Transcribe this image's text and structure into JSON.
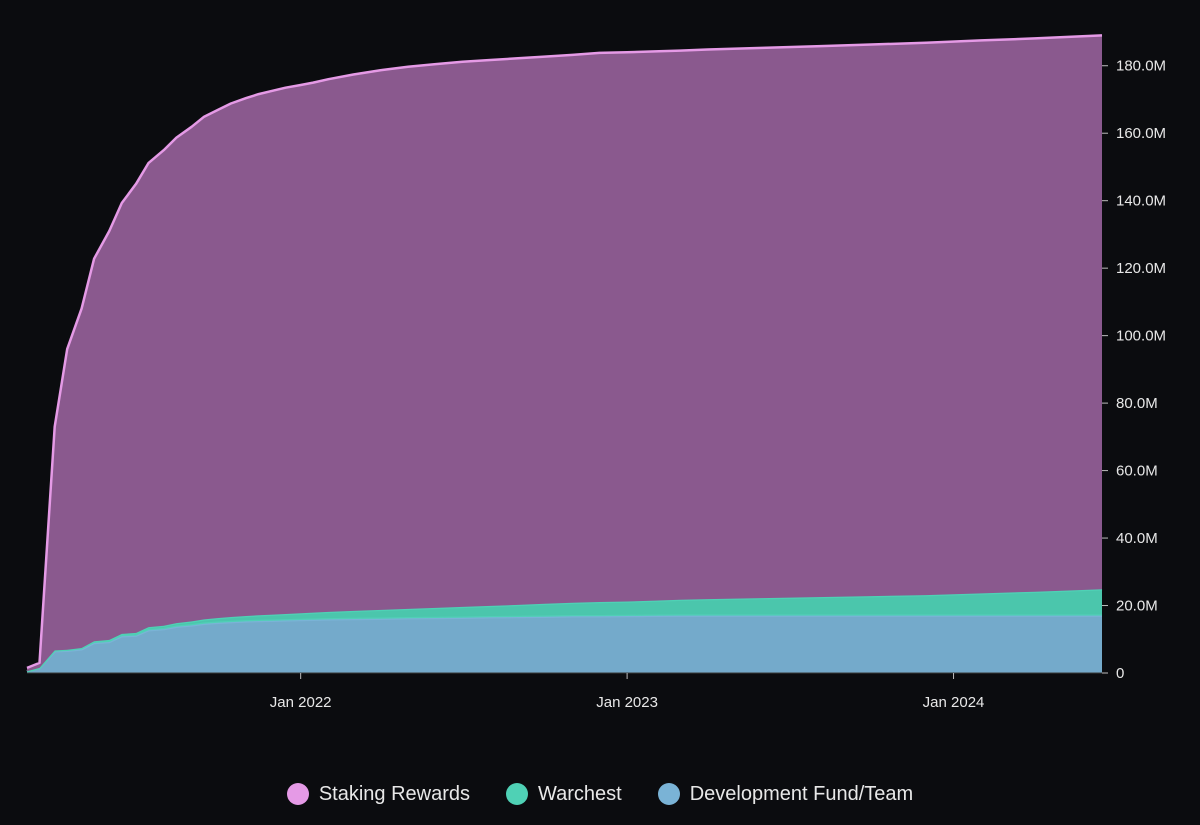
{
  "chart_data": {
    "type": "area",
    "stacked": true,
    "y_axis_position": "right",
    "grid": false,
    "legend_position": "bottom",
    "xlim": [
      "2021-03-01",
      "2024-06-15"
    ],
    "ylim": [
      0,
      190000000
    ],
    "x_ticks": [
      {
        "date": "2022-01-01",
        "label": "Jan 2022"
      },
      {
        "date": "2023-01-01",
        "label": "Jan 2023"
      },
      {
        "date": "2024-01-01",
        "label": "Jan 2024"
      }
    ],
    "y_ticks": [
      {
        "value": 0,
        "label": "0"
      },
      {
        "value": 20000000,
        "label": "20.0M"
      },
      {
        "value": 40000000,
        "label": "40.0M"
      },
      {
        "value": 60000000,
        "label": "60.0M"
      },
      {
        "value": 80000000,
        "label": "80.0M"
      },
      {
        "value": 100000000,
        "label": "100.0M"
      },
      {
        "value": 120000000,
        "label": "120.0M"
      },
      {
        "value": 140000000,
        "label": "140.0M"
      },
      {
        "value": 160000000,
        "label": "160.0M"
      },
      {
        "value": 180000000,
        "label": "180.0M"
      }
    ],
    "x": [
      "2021-03-01",
      "2021-03-15",
      "2021-04-01",
      "2021-04-15",
      "2021-05-01",
      "2021-05-15",
      "2021-06-01",
      "2021-06-15",
      "2021-07-01",
      "2021-07-15",
      "2021-08-01",
      "2021-08-15",
      "2021-09-01",
      "2021-09-15",
      "2021-10-01",
      "2021-10-15",
      "2021-11-01",
      "2021-11-15",
      "2021-12-01",
      "2021-12-15",
      "2022-01-01",
      "2022-01-15",
      "2022-02-01",
      "2022-03-01",
      "2022-04-01",
      "2022-05-01",
      "2022-06-01",
      "2022-07-01",
      "2022-08-01",
      "2022-09-01",
      "2022-10-01",
      "2022-11-01",
      "2022-12-01",
      "2023-01-01",
      "2023-02-01",
      "2023-03-01",
      "2023-04-01",
      "2023-06-01",
      "2023-08-01",
      "2023-10-01",
      "2023-12-01",
      "2024-02-01",
      "2024-04-01",
      "2024-06-15"
    ],
    "series": [
      {
        "name": "Development Fund/Team",
        "color": "#7ab3d6",
        "values": [
          0.5,
          1.5,
          6.5,
          6.6,
          7,
          8.9,
          9.2,
          10.9,
          11.1,
          12.7,
          13,
          13.7,
          14.1,
          14.6,
          14.9,
          15.1,
          15.3,
          15.4,
          15.5,
          15.6,
          15.7,
          15.8,
          15.9,
          16,
          16.1,
          16.2,
          16.3,
          16.4,
          16.5,
          16.6,
          16.7,
          16.8,
          16.85,
          16.9,
          16.95,
          17,
          17,
          17,
          17,
          17,
          17,
          17,
          17,
          17
        ]
      },
      {
        "name": "Warchest",
        "color": "#4fd1b5",
        "values": [
          0,
          0,
          0.2,
          0.3,
          0.4,
          0.5,
          0.6,
          0.7,
          0.8,
          0.9,
          1,
          1.1,
          1.2,
          1.3,
          1.4,
          1.5,
          1.6,
          1.7,
          1.8,
          1.9,
          2,
          2.1,
          2.2,
          2.4,
          2.6,
          2.8,
          3,
          3.2,
          3.4,
          3.6,
          3.8,
          4,
          4.2,
          4.3,
          4.5,
          4.7,
          4.9,
          5.2,
          5.5,
          5.8,
          6.1,
          6.6,
          7.1,
          7.8
        ]
      },
      {
        "name": "Staking Rewards",
        "color": "#e59ae6",
        "fill": "#8a598e",
        "values": [
          1,
          1.5,
          66.3,
          89.1,
          100.6,
          113.4,
          121.2,
          127.7,
          133.1,
          137.6,
          141,
          143.9,
          146.6,
          149,
          150.7,
          152.2,
          153.5,
          154.5,
          155.3,
          156,
          156.6,
          157.1,
          157.9,
          159,
          160,
          160.7,
          161.2,
          161.6,
          161.8,
          162,
          162.2,
          162.4,
          162.75,
          162.8,
          162.8,
          162.8,
          162.9,
          163.1,
          163.3,
          163.5,
          163.7,
          163.9,
          164,
          164.2
        ]
      }
    ],
    "value_unit_multiplier": 1000000
  },
  "legend": {
    "items": [
      {
        "label": "Staking Rewards",
        "color": "#e59ae6"
      },
      {
        "label": "Warchest",
        "color": "#4fd1b5"
      },
      {
        "label": "Development Fund/Team",
        "color": "#7ab3d6"
      }
    ]
  }
}
